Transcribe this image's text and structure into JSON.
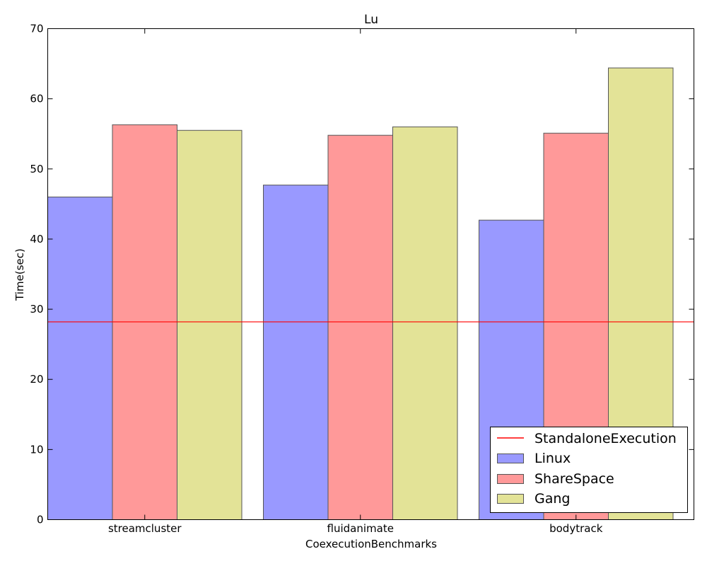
{
  "chart_data": {
    "type": "bar",
    "title": "Lu",
    "xlabel": "CoexecutionBenchmarks",
    "ylabel": "Time(sec)",
    "ylim": [
      0,
      70
    ],
    "yticks": [
      "0",
      "10",
      "20",
      "30",
      "40",
      "50",
      "60",
      "70"
    ],
    "categories": [
      "streamcluster",
      "fluidanimate",
      "bodytrack"
    ],
    "series": [
      {
        "name": "Linux",
        "values": [
          46.0,
          47.7,
          42.7
        ],
        "color": "#9999ff"
      },
      {
        "name": "ShareSpace",
        "values": [
          56.3,
          54.8,
          55.1
        ],
        "color": "#ff9999"
      },
      {
        "name": "Gang",
        "values": [
          55.5,
          56.0,
          64.4
        ],
        "color": "#e3e397"
      }
    ],
    "reference_line": {
      "name": "StandaloneExecution",
      "value": 28.2,
      "color": "#ff0000"
    },
    "grid": false,
    "legend_position": "lower-right"
  }
}
